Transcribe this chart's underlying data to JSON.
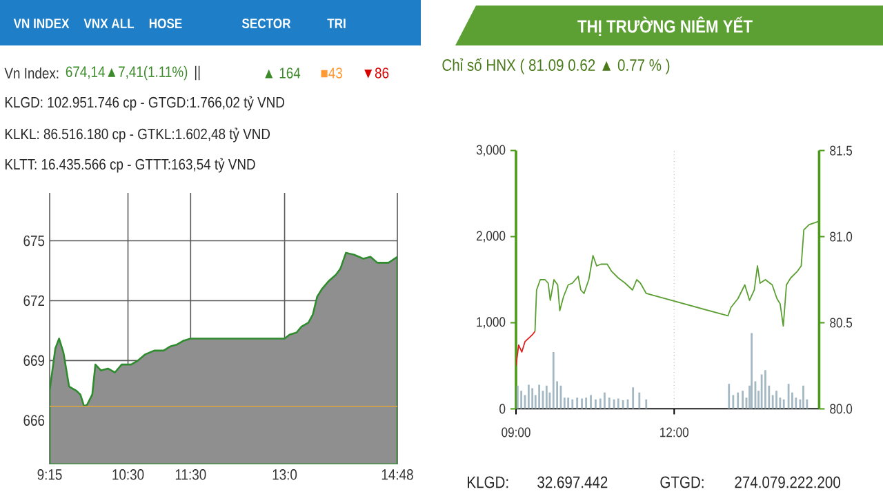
{
  "chart_data": [
    {
      "type": "area",
      "title": "Vn Index:",
      "subtitle": "KLGD: 102.951.746 cp - GTGD:1.766,02 tỷ VND",
      "annotations": [
        "VN INDEX",
        "VNX ALL",
        "HOSE",
        "SECTOR",
        "TRI",
        "674,14▲7,41(1.11%)",
        "||",
        "▲ 164",
        "■43",
        "▼86",
        "KLKL: 86.516.180 cp - GTKL:1.602,48 tỷ VND",
        "KLTT: 16.435.566 cp - GTTT:163,54 tỷ VND"
      ],
      "x": [
        9.25,
        9.34,
        9.4,
        9.47,
        9.56,
        9.67,
        9.74,
        9.8,
        9.85,
        9.93,
        9.98,
        10.07,
        10.18,
        10.29,
        10.4,
        10.55,
        10.66,
        10.77,
        10.92,
        11.07,
        11.17,
        11.28,
        11.39,
        11.5,
        13.0,
        13.08,
        13.19,
        13.27,
        13.38,
        13.45,
        13.52,
        13.6,
        13.71,
        13.82,
        13.89,
        13.98,
        14.11,
        14.26,
        14.37,
        14.48,
        14.66,
        14.8
      ],
      "values": [
        667.5,
        669.6,
        670.1,
        669.4,
        667.7,
        667.5,
        667.3,
        666.7,
        666.8,
        667.3,
        668.8,
        668.5,
        668.6,
        668.4,
        668.8,
        668.8,
        669.0,
        669.3,
        669.5,
        669.5,
        669.7,
        669.8,
        670.0,
        670.1,
        670.1,
        670.3,
        670.4,
        670.7,
        670.9,
        671.3,
        672.2,
        672.6,
        673.0,
        673.3,
        673.6,
        674.4,
        674.3,
        674.1,
        674.2,
        673.9,
        673.9,
        674.2
      ],
      "color": "#8f8f8f",
      "xlim": [
        9.25,
        14.8
      ],
      "ylim": [
        663.8,
        677.4
      ],
      "xticks": [
        {
          "value": 9.25,
          "label": "9:15"
        },
        {
          "value": 10.5,
          "label": "10:30"
        },
        {
          "value": 11.5,
          "label": "11:30"
        },
        {
          "value": 13,
          "label": "13:0"
        },
        {
          "value": 14.8,
          "label": "14:48"
        }
      ],
      "yticks": [
        666,
        669,
        672,
        675
      ],
      "grid": true,
      "ref_lines": [
        {
          "axis": "y",
          "value": 666.7,
          "color": "#c8a050"
        }
      ]
    },
    {
      "type": "line",
      "title": "THỊ TRƯỜNG NIÊM YẾT",
      "subtitle": "Chỉ số HNX ( 81.09 0.62 ▲ 0.77 % )",
      "annotations": [
        "KLGD:",
        "32.697.442",
        "GTGD:",
        "274.079.222.200"
      ],
      "series": [
        {
          "type": "bar",
          "color": "#a3b8c2",
          "x": [
            9.03,
            9.1,
            9.17,
            9.24,
            9.31,
            9.37,
            9.44,
            9.51,
            9.58,
            9.64,
            9.71,
            9.78,
            9.85,
            9.92,
            9.99,
            10.07,
            10.16,
            10.25,
            10.33,
            10.42,
            10.51,
            10.6,
            10.68,
            10.77,
            10.86,
            10.94,
            11.03,
            11.12,
            11.22,
            11.34,
            11.47,
            13.04,
            13.12,
            13.21,
            13.3,
            13.37,
            13.43,
            13.47,
            13.54,
            13.6,
            13.66,
            13.73,
            13.8,
            13.87,
            13.94,
            14.01,
            14.08,
            14.17,
            14.24,
            14.31,
            14.39,
            14.45,
            14.52
          ],
          "values": [
            270,
            210,
            160,
            280,
            240,
            160,
            280,
            210,
            270,
            190,
            660,
            320,
            270,
            130,
            130,
            110,
            130,
            120,
            130,
            160,
            110,
            120,
            190,
            130,
            110,
            120,
            100,
            110,
            250,
            190,
            110,
            290,
            160,
            190,
            210,
            130,
            270,
            880,
            320,
            210,
            400,
            450,
            270,
            160,
            210,
            130,
            110,
            290,
            190,
            130,
            110,
            270,
            110
          ]
        },
        {
          "axis": "y2",
          "color": "#e02020",
          "x": [
            9.0,
            9.05,
            9.11,
            9.17,
            9.24,
            9.31,
            9.36
          ],
          "values": [
            80.25,
            80.37,
            80.33,
            80.39,
            80.41,
            80.43,
            80.45
          ]
        },
        {
          "axis": "y2",
          "color": "#5a9e32",
          "x": [
            9.36,
            9.39,
            9.46,
            9.55,
            9.61,
            9.65,
            9.72,
            9.79,
            9.83,
            9.9,
            9.99,
            10.07,
            10.18,
            10.23,
            10.29,
            10.38,
            10.46,
            10.53,
            10.61,
            10.73,
            10.81,
            10.94,
            11.07,
            11.21,
            11.29,
            11.36,
            11.47,
            13.02,
            13.08,
            13.21,
            13.34,
            13.43,
            13.52,
            13.58,
            13.63,
            13.73,
            13.86,
            13.95,
            14.01,
            14.07,
            14.13,
            14.21,
            14.34,
            14.41,
            14.46,
            14.56,
            14.75
          ],
          "values": [
            80.45,
            80.69,
            80.75,
            80.75,
            80.73,
            80.63,
            80.75,
            80.72,
            80.57,
            80.65,
            80.72,
            80.73,
            80.77,
            80.69,
            80.67,
            80.75,
            80.89,
            80.83,
            80.84,
            80.84,
            80.8,
            80.76,
            80.73,
            80.69,
            80.75,
            80.73,
            80.67,
            80.54,
            80.59,
            80.64,
            80.72,
            80.63,
            80.69,
            80.83,
            80.73,
            80.75,
            80.72,
            80.64,
            80.61,
            80.48,
            80.72,
            80.76,
            80.8,
            80.83,
            81.04,
            81.07,
            81.09
          ]
        }
      ],
      "xlim": [
        9,
        14.75
      ],
      "ylim": [
        0,
        3000
      ],
      "y2lim": [
        80,
        81.5
      ],
      "xticks": [
        {
          "value": 9,
          "label": "09:00"
        },
        {
          "value": 12,
          "label": "12:00"
        }
      ],
      "yticks": [
        0,
        {
          "value": 1000,
          "label": "1,000"
        },
        {
          "value": 2000,
          "label": "2,000"
        },
        {
          "value": 3000,
          "label": "3,000"
        }
      ],
      "y2ticks": [
        {
          "value": 80,
          "label": "80.0"
        },
        80.5,
        {
          "value": 81,
          "label": "81.0"
        },
        81.5
      ],
      "grid": "x"
    }
  ]
}
